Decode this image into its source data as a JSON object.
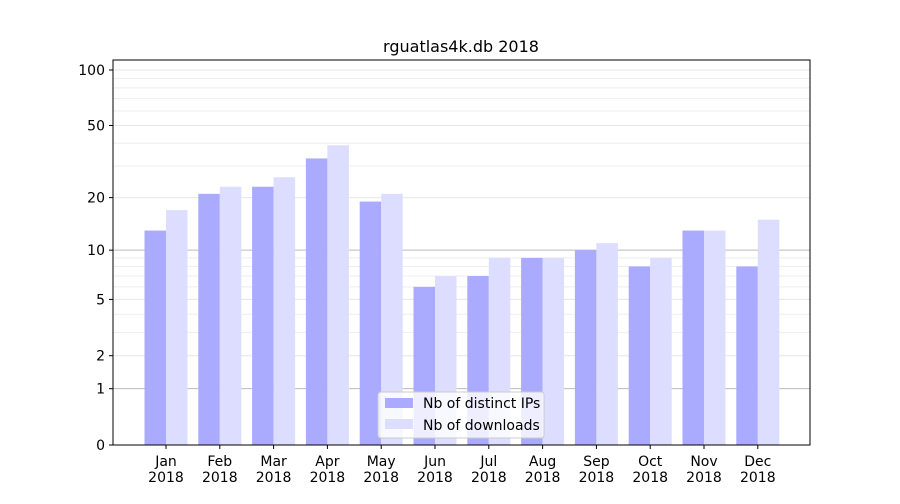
{
  "chart_data": {
    "type": "bar",
    "title": "rguatlas4k.db 2018",
    "xlabel": "",
    "ylabel": "",
    "yscale": "log(1+y)",
    "ylim": [
      0,
      110
    ],
    "yticks": [
      0,
      1,
      2,
      5,
      10,
      20,
      50,
      100
    ],
    "grid": true,
    "legend_position": "bottom-center",
    "categories": [
      "Jan\n2018",
      "Feb\n2018",
      "Mar\n2018",
      "Apr\n2018",
      "May\n2018",
      "Jun\n2018",
      "Jul\n2018",
      "Aug\n2018",
      "Sep\n2018",
      "Oct\n2018",
      "Nov\n2018",
      "Dec\n2018"
    ],
    "series": [
      {
        "name": "Nb of distinct IPs",
        "color": "#aaaaff",
        "values": [
          13,
          21,
          23,
          33,
          19,
          6,
          7,
          9,
          10,
          8,
          13,
          8
        ]
      },
      {
        "name": "Nb of downloads",
        "color": "#ddddff",
        "values": [
          17,
          23,
          26,
          39,
          21,
          7,
          9,
          9,
          11,
          9,
          13,
          15
        ]
      }
    ]
  }
}
